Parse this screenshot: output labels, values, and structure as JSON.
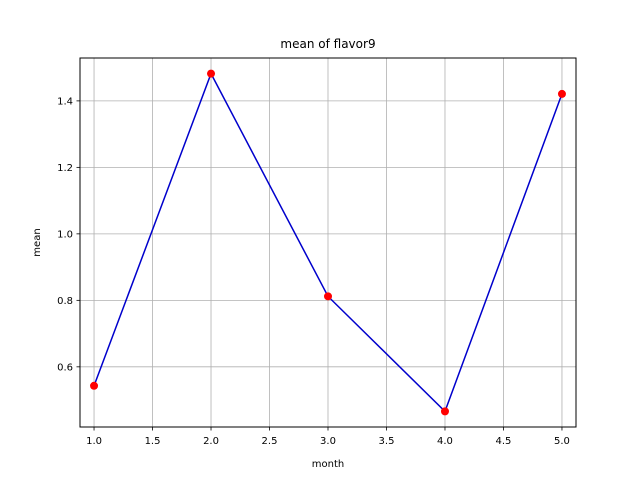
{
  "chart_data": {
    "type": "line",
    "title": "mean of flavor9",
    "xlabel": "month",
    "ylabel": "mean",
    "x": [
      1.0,
      2.0,
      3.0,
      4.0,
      5.0
    ],
    "series": [
      {
        "values": [
          0.543,
          1.482,
          0.812,
          0.466,
          1.421
        ]
      }
    ],
    "xlim": [
      0.88,
      5.12
    ],
    "ylim": [
      0.419,
      1.529
    ],
    "xticks": [
      "1.0",
      "1.5",
      "2.0",
      "2.5",
      "3.0",
      "3.5",
      "4.0",
      "4.5",
      "5.0"
    ],
    "yticks": [
      "0.6",
      "0.8",
      "1.0",
      "1.2",
      "1.4"
    ],
    "grid": true,
    "line_color": "#0000cc",
    "marker_color": "#ff0000"
  }
}
